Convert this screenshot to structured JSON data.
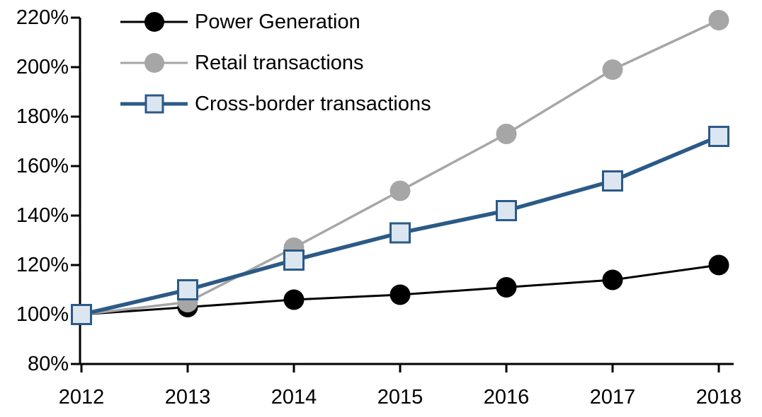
{
  "chart_data": {
    "type": "line",
    "title": "",
    "xlabel": "",
    "ylabel": "",
    "categories": [
      "2012",
      "2013",
      "2014",
      "2015",
      "2016",
      "2017",
      "2018"
    ],
    "series": [
      {
        "name": "Power Generation",
        "values": [
          100,
          103,
          106,
          108,
          111,
          114,
          120
        ],
        "color": "#000000",
        "marker": "circle",
        "marker_fill": "#000000",
        "line_width": 3
      },
      {
        "name": "Retail transactions",
        "values": [
          100,
          105,
          127,
          150,
          173,
          199,
          219
        ],
        "color": "#A6A6A6",
        "marker": "circle",
        "marker_fill": "#A6A6A6",
        "line_width": 3.5
      },
      {
        "name": "Cross-border transactions",
        "values": [
          100,
          110,
          122,
          133,
          142,
          154,
          172
        ],
        "color": "#2B5A87",
        "marker": "square",
        "marker_fill": "#DCE6F1",
        "line_width": 5.5
      }
    ],
    "ylim": [
      80,
      220
    ],
    "y_tick_step": 20,
    "y_tick_suffix": "%",
    "grid": false,
    "legend_position": "top-left",
    "axis_color": "#000000"
  }
}
